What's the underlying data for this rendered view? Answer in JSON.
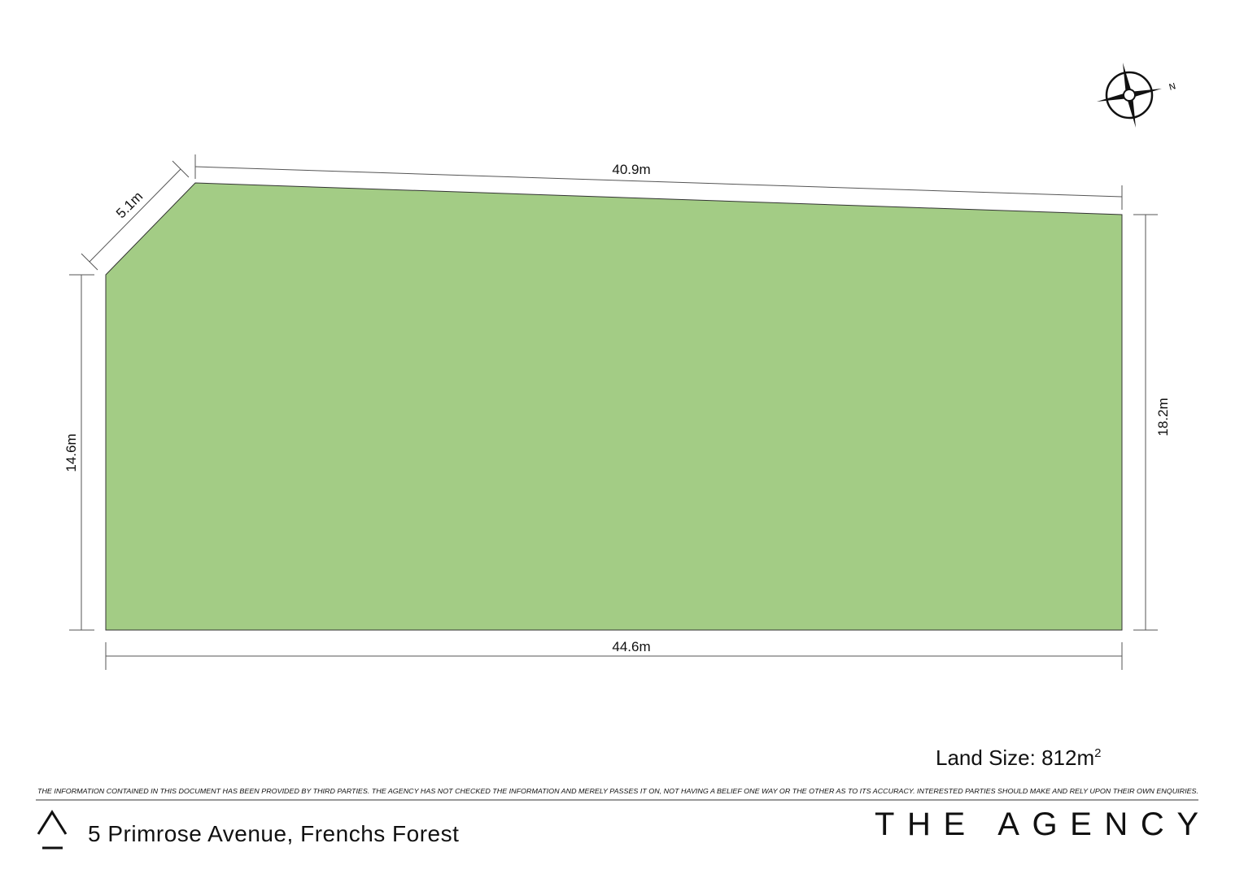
{
  "dimensions": {
    "top": "40.9m",
    "corner": "5.1m",
    "left": "14.6m",
    "right": "18.2m",
    "bottom": "44.6m"
  },
  "land_size": {
    "text": "Land Size: 812m",
    "exponent": "2"
  },
  "compass": {
    "north": "N"
  },
  "footer": {
    "disclaimer": "THE INFORMATION CONTAINED IN THIS DOCUMENT HAS BEEN PROVIDED BY THIRD PARTIES. THE AGENCY HAS NOT CHECKED THE INFORMATION AND MERELY PASSES IT ON, NOT HAVING A BELIEF ONE WAY OR THE OTHER AS TO ITS ACCURACY.  INTERESTED PARTIES SHOULD MAKE AND RELY UPON THEIR OWN ENQUIRIES.",
    "address": "5 Primrose Avenue, Frenchs Forest",
    "brand": "THE AGENCY"
  }
}
